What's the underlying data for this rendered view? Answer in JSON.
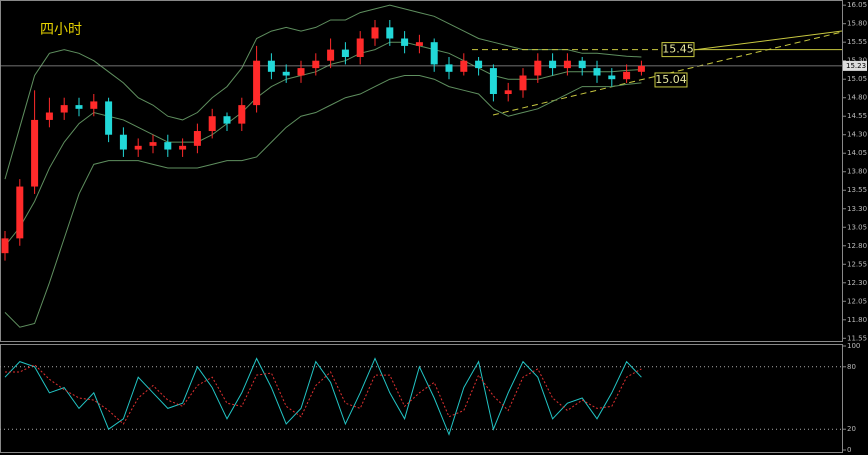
{
  "chart_data": {
    "type": "candlestick",
    "title": "四小时",
    "open": [
      12.7,
      12.9,
      13.6,
      14.5,
      14.6,
      14.7,
      14.65,
      14.75,
      14.3,
      14.1,
      14.15,
      14.2,
      14.1,
      14.15,
      14.35,
      14.55,
      14.45,
      14.7,
      15.3,
      15.15,
      15.1,
      15.2,
      15.3,
      15.45,
      15.35,
      15.6,
      15.75,
      15.6,
      15.5,
      15.55,
      15.25,
      15.15,
      15.3,
      15.2,
      14.85,
      14.9,
      15.1,
      15.3,
      15.2,
      15.3,
      15.2,
      15.1,
      15.05,
      15.15
    ],
    "high": [
      13.0,
      13.7,
      14.9,
      14.8,
      14.8,
      14.8,
      14.85,
      14.8,
      14.4,
      14.25,
      14.3,
      14.3,
      14.25,
      14.45,
      14.65,
      14.6,
      14.8,
      15.5,
      15.4,
      15.25,
      15.3,
      15.4,
      15.6,
      15.55,
      15.7,
      15.85,
      15.85,
      15.7,
      15.65,
      15.6,
      15.35,
      15.4,
      15.35,
      15.25,
      15.0,
      15.2,
      15.4,
      15.4,
      15.4,
      15.35,
      15.3,
      15.2,
      15.25,
      15.3
    ],
    "low": [
      12.6,
      12.8,
      13.5,
      14.4,
      14.5,
      14.55,
      14.55,
      14.2,
      14.0,
      14.0,
      14.05,
      14.0,
      14.0,
      14.05,
      14.25,
      14.35,
      14.35,
      14.6,
      15.05,
      15.0,
      15.0,
      15.1,
      15.2,
      15.25,
      15.25,
      15.5,
      15.5,
      15.4,
      15.4,
      15.15,
      15.05,
      15.1,
      15.1,
      14.75,
      14.75,
      14.8,
      15.0,
      15.1,
      15.1,
      15.1,
      15.0,
      14.95,
      15.0,
      15.1
    ],
    "close": [
      12.9,
      13.6,
      14.5,
      14.6,
      14.7,
      14.65,
      14.75,
      14.3,
      14.1,
      14.15,
      14.2,
      14.1,
      14.15,
      14.35,
      14.55,
      14.45,
      14.7,
      15.3,
      15.15,
      15.1,
      15.2,
      15.3,
      15.45,
      15.35,
      15.6,
      15.75,
      15.6,
      15.5,
      15.55,
      15.25,
      15.15,
      15.3,
      15.2,
      14.85,
      14.9,
      15.1,
      15.3,
      15.2,
      15.3,
      15.2,
      15.1,
      15.05,
      15.15,
      15.23
    ],
    "up_color": "#ff2a2a",
    "down_color": "#22d8d8",
    "bands": {
      "color": "#5f8f5f",
      "upper": [
        13.7,
        14.4,
        15.1,
        15.4,
        15.45,
        15.4,
        15.3,
        15.15,
        15.0,
        14.8,
        14.7,
        14.55,
        14.5,
        14.6,
        14.8,
        14.95,
        15.2,
        15.6,
        15.7,
        15.75,
        15.7,
        15.75,
        15.85,
        15.85,
        15.95,
        16.0,
        16.05,
        16.0,
        15.95,
        15.9,
        15.8,
        15.7,
        15.6,
        15.55,
        15.5,
        15.45,
        15.45,
        15.45,
        15.45,
        15.4,
        15.4,
        15.38,
        15.36,
        15.35
      ],
      "middle": [
        12.8,
        13.05,
        13.4,
        13.85,
        14.2,
        14.45,
        14.6,
        14.55,
        14.5,
        14.4,
        14.3,
        14.2,
        14.2,
        14.2,
        14.3,
        14.45,
        14.6,
        14.8,
        14.95,
        15.05,
        15.1,
        15.15,
        15.25,
        15.3,
        15.4,
        15.45,
        15.55,
        15.55,
        15.5,
        15.45,
        15.4,
        15.3,
        15.2,
        15.1,
        15.05,
        15.05,
        15.05,
        15.1,
        15.15,
        15.15,
        15.15,
        15.15,
        15.17,
        15.18
      ],
      "lower": [
        11.9,
        11.7,
        11.75,
        12.3,
        12.9,
        13.5,
        13.9,
        13.95,
        13.95,
        13.95,
        13.9,
        13.85,
        13.85,
        13.85,
        13.9,
        13.95,
        13.95,
        14.0,
        14.2,
        14.4,
        14.55,
        14.6,
        14.7,
        14.8,
        14.85,
        14.95,
        15.05,
        15.1,
        15.1,
        15.05,
        14.95,
        14.9,
        14.85,
        14.65,
        14.55,
        14.6,
        14.65,
        14.75,
        14.85,
        14.95,
        14.95,
        14.95,
        14.98,
        15.0
      ]
    },
    "ylim": [
      11.5,
      16.12
    ],
    "yticks": [
      16.05,
      {
        "value": 15.8,
        "label": "15.80"
      },
      15.55,
      {
        "value": 15.3,
        "label": "15.30"
      },
      15.05,
      {
        "value": 14.8,
        "label": "14.80"
      },
      14.55,
      {
        "value": 14.3,
        "label": "14.30"
      },
      14.05,
      {
        "value": 13.8,
        "label": "13.80"
      },
      13.55,
      {
        "value": 13.3,
        "label": "13.30"
      },
      13.05,
      {
        "value": 12.8,
        "label": "12.80"
      },
      12.55,
      {
        "value": 12.3,
        "label": "12.30"
      },
      12.05,
      {
        "value": 11.8,
        "label": "11.80"
      },
      11.55
    ],
    "last_price": 15.23,
    "levels": [
      15.45,
      15.04
    ],
    "oscillator": {
      "ylim": [
        0,
        100
      ],
      "yticks": [
        100,
        80,
        20,
        0
      ],
      "ref_lines": [
        80,
        20
      ],
      "series": [
        {
          "color": "#22c4c4",
          "values": [
            70,
            85,
            80,
            55,
            60,
            40,
            55,
            20,
            30,
            70,
            55,
            40,
            45,
            80,
            60,
            30,
            55,
            88,
            60,
            25,
            40,
            85,
            65,
            25,
            55,
            88,
            55,
            30,
            80,
            50,
            15,
            60,
            85,
            20,
            55,
            85,
            70,
            30,
            45,
            50,
            30,
            55,
            85,
            70
          ]
        },
        {
          "color": "#e03030",
          "values": [
            75,
            75,
            82,
            68,
            58,
            50,
            48,
            38,
            25,
            50,
            62,
            48,
            42,
            62,
            70,
            45,
            42,
            72,
            74,
            42,
            32,
            62,
            75,
            45,
            40,
            72,
            72,
            42,
            55,
            65,
            32,
            38,
            72,
            52,
            38,
            70,
            78,
            50,
            38,
            48,
            40,
            42,
            70,
            78
          ]
        }
      ]
    }
  }
}
